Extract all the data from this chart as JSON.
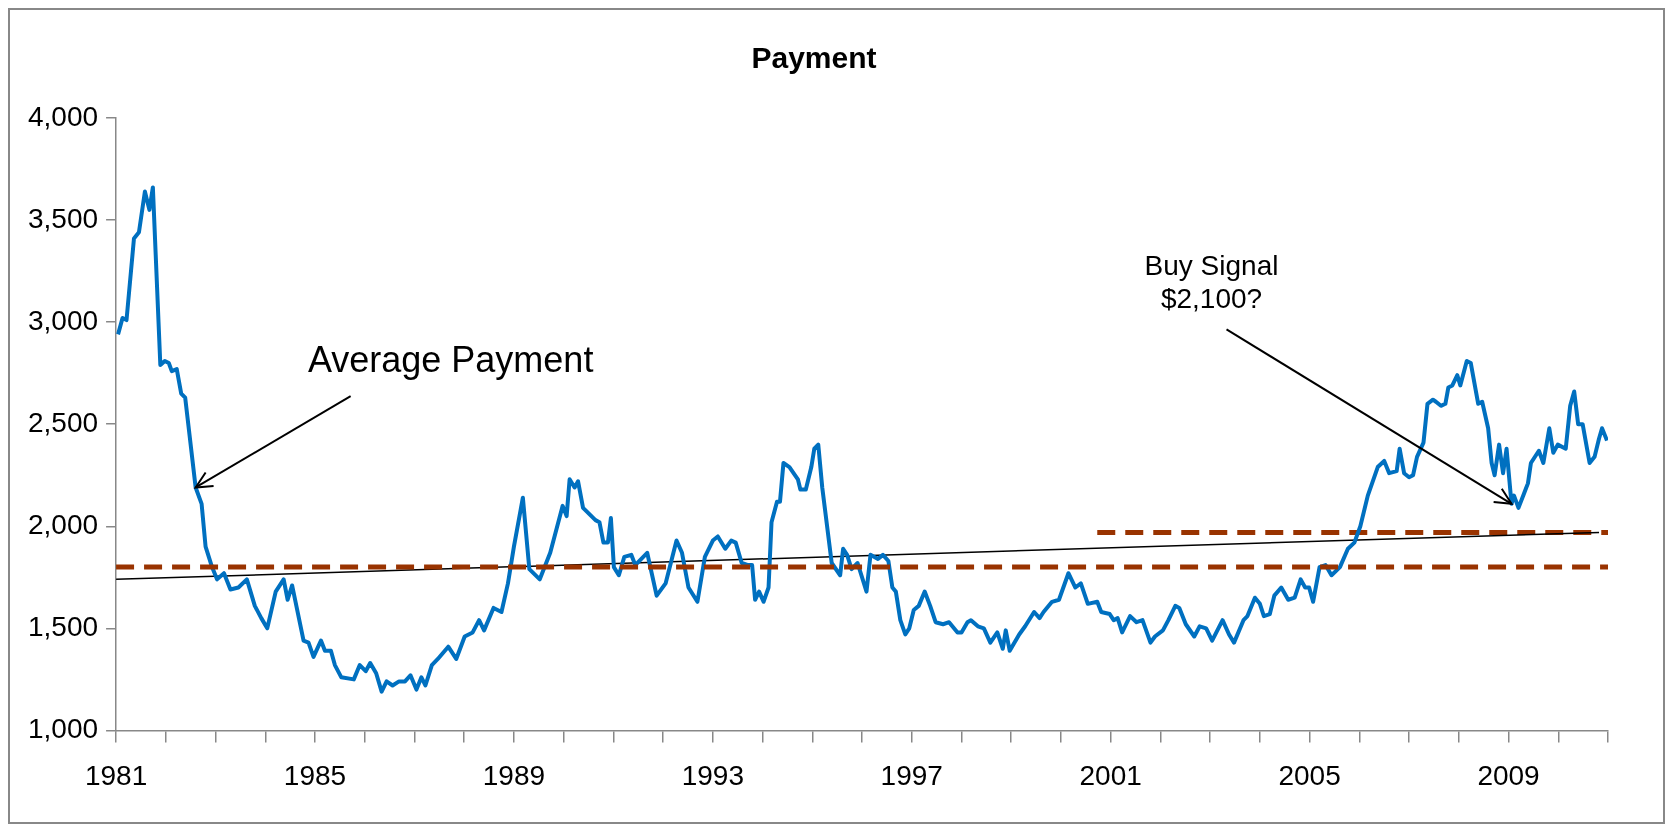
{
  "chart_data": {
    "type": "line",
    "title": "Payment",
    "x": [
      1981.04,
      1981.13,
      1981.21,
      1981.36,
      1981.46,
      1981.58,
      1981.67,
      1981.74,
      1981.89,
      1981.98,
      1982.06,
      1982.12,
      1982.22,
      1982.31,
      1982.39,
      1982.6,
      1982.72,
      1982.8,
      1982.93,
      1983.03,
      1983.17,
      1983.3,
      1983.46,
      1983.63,
      1983.79,
      1983.92,
      1984.04,
      1984.21,
      1984.37,
      1984.45,
      1984.54,
      1984.77,
      1984.87,
      1984.97,
      1985.12,
      1985.2,
      1985.32,
      1985.4,
      1985.53,
      1985.78,
      1985.9,
      1986.02,
      1986.11,
      1986.23,
      1986.34,
      1986.44,
      1986.56,
      1986.69,
      1986.81,
      1986.92,
      1987.04,
      1987.14,
      1987.22,
      1987.35,
      1987.47,
      1987.68,
      1987.84,
      1988.01,
      1988.17,
      1988.3,
      1988.4,
      1988.59,
      1988.75,
      1988.88,
      1989.0,
      1989.18,
      1989.31,
      1989.52,
      1989.73,
      1989.98,
      1990.06,
      1990.12,
      1990.22,
      1990.29,
      1990.39,
      1990.64,
      1990.72,
      1990.8,
      1990.89,
      1990.95,
      1991.01,
      1991.11,
      1991.22,
      1991.36,
      1991.44,
      1991.68,
      1991.87,
      1992.05,
      1992.27,
      1992.38,
      1992.51,
      1992.69,
      1992.84,
      1993.0,
      1993.1,
      1993.25,
      1993.37,
      1993.46,
      1993.58,
      1993.71,
      1993.79,
      1993.85,
      1993.93,
      1994.02,
      1994.12,
      1994.18,
      1994.29,
      1994.35,
      1994.42,
      1994.54,
      1994.71,
      1994.76,
      1994.87,
      1994.98,
      1995.04,
      1995.12,
      1995.2,
      1995.39,
      1995.56,
      1995.62,
      1995.7,
      1995.79,
      1995.91,
      1996.09,
      1996.17,
      1996.32,
      1996.42,
      1996.53,
      1996.61,
      1996.68,
      1996.77,
      1996.87,
      1996.95,
      1997.04,
      1997.14,
      1997.26,
      1997.37,
      1997.48,
      1997.63,
      1997.75,
      1997.92,
      1998.0,
      1998.12,
      1998.19,
      1998.33,
      1998.45,
      1998.58,
      1998.72,
      1998.83,
      1998.89,
      1998.97,
      1999.16,
      1999.28,
      1999.46,
      1999.57,
      1999.65,
      1999.82,
      1999.96,
      2000.15,
      2000.29,
      2000.4,
      2000.54,
      2000.73,
      2000.81,
      2000.98,
      2001.06,
      2001.14,
      2001.23,
      2001.39,
      2001.52,
      2001.64,
      2001.8,
      2001.89,
      2002.05,
      2002.16,
      2002.3,
      2002.38,
      2002.51,
      2002.68,
      2002.79,
      2002.92,
      2003.04,
      2003.25,
      2003.38,
      2003.48,
      2003.67,
      2003.75,
      2003.9,
      2004.0,
      2004.08,
      2004.2,
      2004.29,
      2004.43,
      2004.57,
      2004.7,
      2004.82,
      2004.91,
      2004.99,
      2005.07,
      2005.2,
      2005.32,
      2005.44,
      2005.61,
      2005.77,
      2005.9,
      2006.02,
      2006.17,
      2006.37,
      2006.5,
      2006.6,
      2006.75,
      2006.81,
      2006.9,
      2007.0,
      2007.08,
      2007.16,
      2007.29,
      2007.37,
      2007.48,
      2007.54,
      2007.64,
      2007.73,
      2007.79,
      2007.87,
      2007.97,
      2008.03,
      2008.16,
      2008.24,
      2008.39,
      2008.47,
      2008.59,
      2008.66,
      2008.72,
      2008.81,
      2008.89,
      2008.96,
      2009.06,
      2009.11,
      2009.2,
      2009.39,
      2009.45,
      2009.61,
      2009.7,
      2009.82,
      2009.9,
      2009.99,
      2010.15,
      2010.24,
      2010.32,
      2010.4,
      2010.49,
      2010.63,
      2010.73,
      2010.82,
      2010.88,
      2010.98
    ],
    "series": [
      {
        "color": "#0070c0",
        "values": [
          2940,
          3020,
          3010,
          3410,
          3440,
          3640,
          3550,
          3660,
          2790,
          2810,
          2800,
          2760,
          2770,
          2650,
          2630,
          2190,
          2110,
          1900,
          1800,
          1740,
          1770,
          1690,
          1700,
          1740,
          1610,
          1550,
          1500,
          1680,
          1740,
          1640,
          1710,
          1440,
          1430,
          1360,
          1440,
          1390,
          1390,
          1320,
          1260,
          1250,
          1320,
          1290,
          1330,
          1280,
          1190,
          1240,
          1220,
          1240,
          1240,
          1270,
          1200,
          1260,
          1220,
          1320,
          1350,
          1410,
          1350,
          1460,
          1480,
          1540,
          1490,
          1600,
          1580,
          1720,
          1900,
          2140,
          1790,
          1740,
          1870,
          2100,
          2050,
          2230,
          2190,
          2220,
          2090,
          2030,
          2020,
          1920,
          1920,
          2040,
          1800,
          1760,
          1850,
          1860,
          1810,
          1870,
          1660,
          1720,
          1930,
          1870,
          1700,
          1630,
          1850,
          1930,
          1950,
          1890,
          1930,
          1920,
          1820,
          1810,
          1810,
          1640,
          1680,
          1630,
          1700,
          2020,
          2120,
          2120,
          2310,
          2290,
          2230,
          2180,
          2180,
          2290,
          2380,
          2400,
          2190,
          1820,
          1760,
          1890,
          1860,
          1790,
          1820,
          1680,
          1860,
          1840,
          1860,
          1830,
          1700,
          1680,
          1540,
          1470,
          1500,
          1590,
          1610,
          1680,
          1610,
          1530,
          1520,
          1530,
          1480,
          1480,
          1530,
          1540,
          1510,
          1500,
          1430,
          1480,
          1400,
          1490,
          1390,
          1470,
          1510,
          1580,
          1550,
          1580,
          1630,
          1640,
          1770,
          1700,
          1720,
          1620,
          1630,
          1580,
          1570,
          1540,
          1550,
          1480,
          1560,
          1530,
          1540,
          1430,
          1460,
          1490,
          1540,
          1610,
          1600,
          1520,
          1460,
          1510,
          1500,
          1440,
          1540,
          1470,
          1430,
          1540,
          1560,
          1650,
          1620,
          1560,
          1570,
          1660,
          1700,
          1640,
          1650,
          1740,
          1700,
          1700,
          1630,
          1800,
          1810,
          1760,
          1800,
          1890,
          1920,
          2000,
          2150,
          2290,
          2320,
          2260,
          2270,
          2380,
          2260,
          2240,
          2250,
          2340,
          2410,
          2600,
          2620,
          2610,
          2590,
          2600,
          2680,
          2690,
          2740,
          2690,
          2810,
          2800,
          2600,
          2610,
          2480,
          2310,
          2250,
          2400,
          2260,
          2380,
          2110,
          2150,
          2090,
          2210,
          2310,
          2370,
          2310,
          2480,
          2360,
          2400,
          2380,
          2590,
          2660,
          2500,
          2500,
          2310,
          2340,
          2430,
          2480,
          2420
        ]
      },
      {
        "color": "#000000",
        "x": [
          1981.0,
          2010.82
        ],
        "values": [
          1740,
          1970
        ]
      },
      {
        "color": "#993300",
        "line_style": "dashed",
        "x": [
          2000.73,
          2011.0
        ],
        "values": [
          1970,
          1970
        ]
      }
    ],
    "ref_lines": [
      {
        "axis": "y",
        "value": 1800,
        "color": "#993300",
        "line_style": "dashed"
      }
    ],
    "annotations": [
      {
        "text": "Average Payment",
        "x": 1982.6,
        "y": 2190
      },
      {
        "text": "Buy Signal\n$2,100?",
        "x": 2009.06,
        "y": 2110
      }
    ],
    "xlim": [
      1981,
      2011
    ],
    "xticks": [
      1981,
      {
        "value": 1982,
        "label": null
      },
      {
        "value": 1983,
        "label": null
      },
      {
        "value": 1984,
        "label": null
      },
      1985,
      {
        "value": 1986,
        "label": null
      },
      {
        "value": 1987,
        "label": null
      },
      {
        "value": 1988,
        "label": null
      },
      1989,
      {
        "value": 1990,
        "label": null
      },
      {
        "value": 1991,
        "label": null
      },
      {
        "value": 1992,
        "label": null
      },
      1993,
      {
        "value": 1994,
        "label": null
      },
      {
        "value": 1995,
        "label": null
      },
      {
        "value": 1996,
        "label": null
      },
      1997,
      {
        "value": 1998,
        "label": null
      },
      {
        "value": 1999,
        "label": null
      },
      {
        "value": 2000,
        "label": null
      },
      2001,
      {
        "value": 2002,
        "label": null
      },
      {
        "value": 2003,
        "label": null
      },
      {
        "value": 2004,
        "label": null
      },
      2005,
      {
        "value": 2006,
        "label": null
      },
      {
        "value": 2007,
        "label": null
      },
      {
        "value": 2008,
        "label": null
      },
      2009,
      {
        "value": 2010,
        "label": null
      },
      {
        "value": 2011,
        "label": null
      }
    ],
    "ylim": [
      1000,
      4000
    ],
    "yticks": [
      {
        "value": 1000,
        "label": "1,000"
      },
      {
        "value": 1500,
        "label": "1,500"
      },
      {
        "value": 2000,
        "label": "2,000"
      },
      {
        "value": 2500,
        "label": "2,500"
      },
      {
        "value": 3000,
        "label": "3,000"
      },
      {
        "value": 3500,
        "label": "3,500"
      },
      {
        "value": 4000,
        "label": "4,000"
      }
    ],
    "grid": false,
    "legend": false
  }
}
